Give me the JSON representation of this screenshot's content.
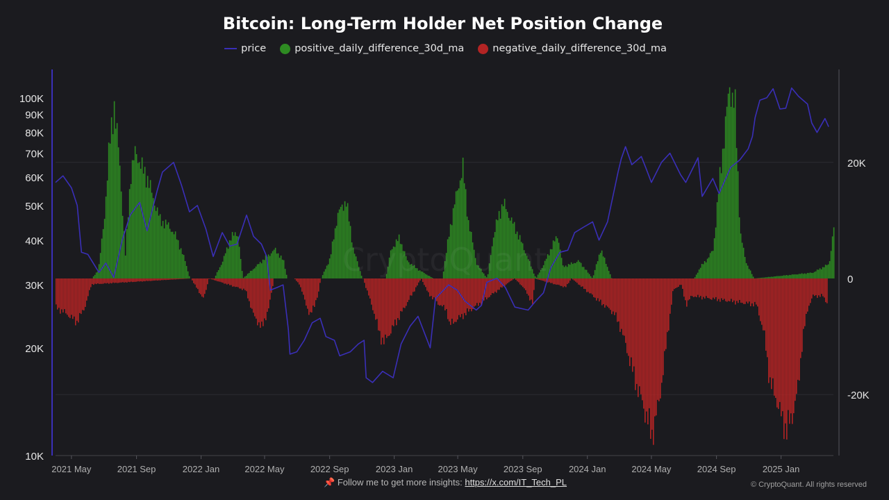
{
  "title": "Bitcoin: Long-Term Holder Net Position Change",
  "legend": [
    {
      "label": "price",
      "color": "#3a2fb8",
      "shape": "line"
    },
    {
      "label": "positive_daily_difference_30d_ma",
      "color": "#2e8b22",
      "shape": "circle"
    },
    {
      "label": "negative_daily_difference_30d_ma",
      "color": "#b32424",
      "shape": "circle"
    }
  ],
  "footer": {
    "pin_icon": "pushpin-icon",
    "text": "Follow me to get more insights:",
    "link": "https://x.com/IT_Tech_PL"
  },
  "copyright": "© CryptoQuant. All rights reserved",
  "chart_data": {
    "type": "bar+line",
    "title": "Bitcoin: Long-Term Holder Net Position Change",
    "x_tick_labels": [
      "2021 May",
      "2021 Sep",
      "2022 Jan",
      "2022 May",
      "2022 Sep",
      "2023 Jan",
      "2023 May",
      "2023 Sep",
      "2024 Jan",
      "2024 May",
      "2024 Sep",
      "2025 Jan"
    ],
    "x_range": [
      "2021-04-01",
      "2025-04-10"
    ],
    "left_axis": {
      "scale": "log",
      "ylim": [
        10000,
        120000
      ],
      "ticks": [
        {
          "v": 10000,
          "label": "10K"
        },
        {
          "v": 20000,
          "label": "20K"
        },
        {
          "v": 30000,
          "label": "30K"
        },
        {
          "v": 40000,
          "label": "40K"
        },
        {
          "v": 50000,
          "label": "50K"
        },
        {
          "v": 60000,
          "label": "60K"
        },
        {
          "v": 70000,
          "label": "70K"
        },
        {
          "v": 80000,
          "label": "80K"
        },
        {
          "v": 90000,
          "label": "90K"
        },
        {
          "v": 100000,
          "label": "100K"
        }
      ]
    },
    "right_axis": {
      "scale": "linear",
      "ylim": [
        -30500,
        36000
      ],
      "ticks": [
        {
          "v": 20000,
          "label": "20K"
        },
        {
          "v": 0,
          "label": "0"
        },
        {
          "v": -20000,
          "label": "-20K"
        }
      ]
    },
    "grid": true,
    "legend_position": "top",
    "series": [
      {
        "name": "price",
        "axis": "left",
        "type": "line",
        "color": "#3a2fb8",
        "x": [
          "2021-04-01",
          "2021-04-15",
          "2021-05-01",
          "2021-05-12",
          "2021-05-20",
          "2021-06-01",
          "2021-06-22",
          "2021-07-05",
          "2021-07-20",
          "2021-08-05",
          "2021-08-20",
          "2021-09-07",
          "2021-09-21",
          "2021-10-10",
          "2021-10-20",
          "2021-11-10",
          "2021-11-25",
          "2021-12-10",
          "2021-12-25",
          "2022-01-10",
          "2022-01-24",
          "2022-02-10",
          "2022-02-24",
          "2022-03-10",
          "2022-03-28",
          "2022-04-10",
          "2022-04-25",
          "2022-05-05",
          "2022-05-12",
          "2022-05-25",
          "2022-06-05",
          "2022-06-15",
          "2022-06-18",
          "2022-07-01",
          "2022-07-15",
          "2022-07-30",
          "2022-08-14",
          "2022-08-25",
          "2022-09-10",
          "2022-09-20",
          "2022-10-10",
          "2022-10-25",
          "2022-11-05",
          "2022-11-09",
          "2022-11-21",
          "2022-12-10",
          "2022-12-30",
          "2023-01-14",
          "2023-01-31",
          "2023-02-15",
          "2023-03-10",
          "2023-03-20",
          "2023-04-14",
          "2023-04-30",
          "2023-05-15",
          "2023-06-05",
          "2023-06-15",
          "2023-06-25",
          "2023-07-14",
          "2023-07-30",
          "2023-08-17",
          "2023-09-11",
          "2023-09-25",
          "2023-10-10",
          "2023-10-24",
          "2023-11-10",
          "2023-11-25",
          "2023-12-08",
          "2023-12-25",
          "2024-01-11",
          "2024-01-23",
          "2024-02-08",
          "2024-02-28",
          "2024-03-05",
          "2024-03-13",
          "2024-03-25",
          "2024-04-12",
          "2024-04-20",
          "2024-05-01",
          "2024-05-20",
          "2024-06-05",
          "2024-06-25",
          "2024-07-05",
          "2024-07-28",
          "2024-08-05",
          "2024-08-25",
          "2024-09-06",
          "2024-09-28",
          "2024-10-15",
          "2024-10-31",
          "2024-11-08",
          "2024-11-13",
          "2024-11-22",
          "2024-12-05",
          "2024-12-17",
          "2024-12-30",
          "2025-01-10",
          "2025-01-21",
          "2025-02-03",
          "2025-02-20",
          "2025-02-28",
          "2025-03-10",
          "2025-03-25",
          "2025-04-01"
        ],
        "y": [
          58000,
          60500,
          56000,
          50000,
          37000,
          36500,
          32500,
          34500,
          31500,
          40000,
          47000,
          51000,
          42500,
          55000,
          62000,
          66000,
          57000,
          48000,
          50000,
          43000,
          36000,
          42000,
          38500,
          39000,
          47000,
          41000,
          39000,
          36000,
          29000,
          29500,
          30000,
          22500,
          19200,
          19500,
          21000,
          23500,
          24200,
          21500,
          21000,
          19000,
          19500,
          20500,
          21000,
          16500,
          16000,
          17200,
          16500,
          20500,
          23000,
          24500,
          20000,
          27500,
          30000,
          29000,
          27000,
          25500,
          26300,
          30500,
          31300,
          29500,
          26000,
          25500,
          27000,
          28500,
          33500,
          37000,
          37500,
          42000,
          43500,
          45000,
          40000,
          45000,
          62000,
          67500,
          73000,
          65000,
          68500,
          64000,
          58000,
          66000,
          70000,
          61000,
          58000,
          68000,
          53000,
          59500,
          54000,
          64000,
          67000,
          72000,
          78000,
          88000,
          98500,
          100000,
          106000,
          93000,
          93500,
          106500,
          101000,
          96000,
          85000,
          80000,
          87500,
          83000
        ]
      },
      {
        "name": "positive_daily_difference_30d_ma",
        "axis": "right",
        "type": "bar",
        "color": "#2e8b22",
        "x": [
          "2021-06-08",
          "2021-06-20",
          "2021-07-01",
          "2021-07-10",
          "2021-07-20",
          "2021-07-30",
          "2021-08-10",
          "2021-08-20",
          "2021-08-30",
          "2021-09-10",
          "2021-09-20",
          "2021-10-01",
          "2021-10-15",
          "2021-11-01",
          "2021-11-15",
          "2021-12-01",
          "2021-12-10",
          "2022-01-25",
          "2022-02-10",
          "2022-02-25",
          "2022-03-10",
          "2022-03-20",
          "2022-05-01",
          "2022-05-20",
          "2022-06-05",
          "2022-06-12",
          "2022-08-15",
          "2022-09-01",
          "2022-09-15",
          "2022-10-01",
          "2022-10-15",
          "2022-11-01",
          "2022-12-15",
          "2022-12-25",
          "2023-01-10",
          "2023-01-25",
          "2023-02-15",
          "2023-03-15",
          "2023-04-01",
          "2023-04-15",
          "2023-05-01",
          "2023-05-10",
          "2023-05-20",
          "2023-06-05",
          "2023-06-25",
          "2023-07-05",
          "2023-07-15",
          "2023-07-25",
          "2023-08-25",
          "2023-09-25",
          "2023-10-10",
          "2023-10-25",
          "2023-11-05",
          "2023-11-15",
          "2023-12-15",
          "2024-01-10",
          "2024-01-25",
          "2024-02-05",
          "2024-02-15",
          "2024-05-12",
          "2024-07-20",
          "2024-08-01",
          "2024-08-15",
          "2024-08-25",
          "2024-09-05",
          "2024-09-15",
          "2024-09-25",
          "2024-10-05",
          "2024-10-15",
          "2024-10-25",
          "2024-11-10",
          "2025-03-01",
          "2025-04-01",
          "2025-04-10"
        ],
        "y": [
          0,
          1500,
          10000,
          22000,
          30000,
          20000,
          4000,
          18000,
          22000,
          19000,
          17500,
          14000,
          10000,
          9000,
          7000,
          3000,
          0,
          0,
          3000,
          7000,
          8000,
          0,
          3500,
          5000,
          3000,
          0,
          0,
          3500,
          11000,
          13500,
          5000,
          0,
          0,
          5000,
          7000,
          3000,
          1500,
          0,
          0,
          8500,
          16000,
          19000,
          10000,
          2500,
          0,
          6500,
          10500,
          13000,
          7000,
          0,
          2500,
          5500,
          7500,
          2000,
          3000,
          0,
          5000,
          2500,
          0,
          0,
          0,
          2000,
          3500,
          5000,
          16000,
          25000,
          33000,
          30000,
          8000,
          3000,
          0,
          1000,
          2500,
          9000
        ]
      },
      {
        "name": "negative_daily_difference_30d_ma",
        "axis": "right",
        "type": "bar",
        "color": "#b32424",
        "x": [
          "2021-04-01",
          "2021-04-20",
          "2021-05-10",
          "2021-05-25",
          "2021-06-07",
          "2021-12-12",
          "2021-12-25",
          "2022-01-05",
          "2022-01-15",
          "2022-03-25",
          "2022-04-10",
          "2022-04-25",
          "2022-05-08",
          "2022-05-18",
          "2022-06-25",
          "2022-07-05",
          "2022-07-25",
          "2022-08-10",
          "2022-08-14",
          "2022-11-02",
          "2022-11-20",
          "2022-12-05",
          "2022-12-12",
          "2023-02-20",
          "2023-03-05",
          "2023-03-20",
          "2023-04-10",
          "2023-04-14",
          "2023-08-15",
          "2023-09-01",
          "2023-09-20",
          "2023-09-22",
          "2023-11-20",
          "2023-12-01",
          "2024-02-20",
          "2024-03-05",
          "2024-03-20",
          "2024-04-01",
          "2024-04-15",
          "2024-04-25",
          "2024-05-01",
          "2024-05-15",
          "2024-05-30",
          "2024-06-10",
          "2024-06-25",
          "2024-07-05",
          "2024-07-15",
          "2024-11-15",
          "2024-11-30",
          "2024-12-10",
          "2024-12-20",
          "2025-01-01",
          "2025-01-10",
          "2025-01-20",
          "2025-02-01",
          "2025-02-10",
          "2025-02-20",
          "2025-03-01",
          "2025-03-20",
          "2025-03-30"
        ],
        "y": [
          -5000,
          -6000,
          -7500,
          -5000,
          -1000,
          0,
          -2000,
          -3500,
          0,
          -2000,
          -6500,
          -8500,
          -5000,
          0,
          0,
          -1000,
          -6500,
          -2500,
          0,
          0,
          -5000,
          -10000,
          -11000,
          0,
          -2500,
          -4000,
          -5500,
          -8000,
          0,
          -1500,
          -4500,
          0,
          -1500,
          0,
          -6000,
          -9000,
          -14000,
          -18000,
          -22000,
          -25000,
          -27000,
          -21000,
          -10000,
          -2000,
          -1000,
          -4500,
          -3000,
          -4500,
          -10000,
          -18000,
          -20000,
          -24000,
          -26000,
          -24000,
          -19000,
          -10000,
          -5000,
          -3000,
          -3000,
          -4500
        ]
      }
    ]
  }
}
